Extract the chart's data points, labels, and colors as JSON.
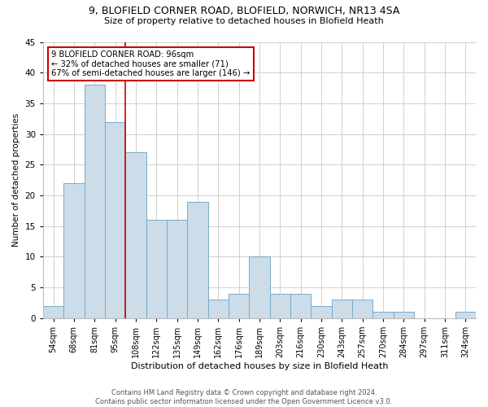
{
  "title1": "9, BLOFIELD CORNER ROAD, BLOFIELD, NORWICH, NR13 4SA",
  "title2": "Size of property relative to detached houses in Blofield Heath",
  "xlabel": "Distribution of detached houses by size in Blofield Heath",
  "ylabel": "Number of detached properties",
  "footer": "Contains HM Land Registry data © Crown copyright and database right 2024.\nContains public sector information licensed under the Open Government Licence v3.0.",
  "categories": [
    "54sqm",
    "68sqm",
    "81sqm",
    "95sqm",
    "108sqm",
    "122sqm",
    "135sqm",
    "149sqm",
    "162sqm",
    "176sqm",
    "189sqm",
    "203sqm",
    "216sqm",
    "230sqm",
    "243sqm",
    "257sqm",
    "270sqm",
    "284sqm",
    "297sqm",
    "311sqm",
    "324sqm"
  ],
  "values": [
    2,
    22,
    38,
    32,
    27,
    16,
    16,
    19,
    3,
    4,
    10,
    4,
    4,
    2,
    3,
    3,
    1,
    1,
    0,
    0,
    1
  ],
  "bar_color": "#ccdce8",
  "bar_edge_color": "#7aaac8",
  "annotation_text": "9 BLOFIELD CORNER ROAD: 96sqm\n← 32% of detached houses are smaller (71)\n67% of semi-detached houses are larger (146) →",
  "annotation_box_color": "#ffffff",
  "annotation_box_edge": "#cc0000",
  "ylim": [
    0,
    45
  ],
  "yticks": [
    0,
    5,
    10,
    15,
    20,
    25,
    30,
    35,
    40,
    45
  ],
  "background_color": "#ffffff",
  "grid_color": "#d0d0d0",
  "vline_color": "#cc0000",
  "vline_x_index": 3
}
